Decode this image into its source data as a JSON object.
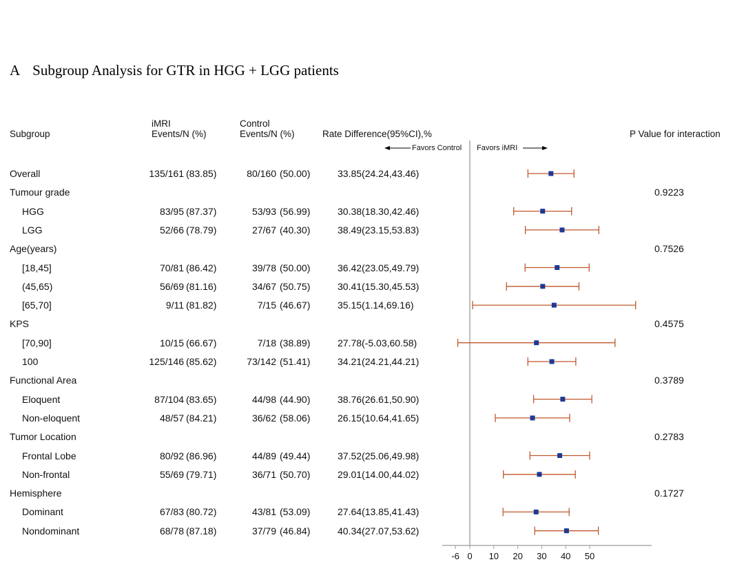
{
  "title": {
    "panel": "A",
    "text": "Subgroup Analysis for GTR in HGG + LGG patients"
  },
  "headers": {
    "subgroup": "Subgroup",
    "imri_line1": "iMRI",
    "imri_line2": "Events/N (%)",
    "control_line1": "Control",
    "control_line2": "Events/N (%)",
    "rate_diff": "Rate Difference(95%CI),%",
    "p_value": "P Value for interaction",
    "favors_control": "Favors Control",
    "favors_imri": "Favors iMRI"
  },
  "colors": {
    "ci_line": "#c0562b",
    "point": "#1f3a93",
    "axis": "#9a9a9a"
  },
  "chart_data": {
    "type": "forest",
    "xlim": [
      -6,
      70
    ],
    "xticks": [
      -6,
      0,
      10,
      20,
      30,
      40,
      50
    ],
    "reference_line": 0,
    "rows": [
      {
        "label": "Overall",
        "level": 0,
        "imri_events": "135/161",
        "imri_pct": "(83.85)",
        "control_events": "80/160",
        "control_pct": "(50.00)",
        "estimate_text": "33.85(24.24,43.46)",
        "est": 33.85,
        "lo": 24.24,
        "hi": 43.46,
        "p": ""
      },
      {
        "label": "Tumour grade",
        "level": 0,
        "p": "0.9223"
      },
      {
        "label": "HGG",
        "level": 1,
        "imri_events": "83/95",
        "imri_pct": "(87.37)",
        "control_events": "53/93",
        "control_pct": "(56.99)",
        "estimate_text": "30.38(18.30,42.46)",
        "est": 30.38,
        "lo": 18.3,
        "hi": 42.46,
        "p": ""
      },
      {
        "label": "LGG",
        "level": 1,
        "imri_events": "52/66",
        "imri_pct": "(78.79)",
        "control_events": "27/67",
        "control_pct": "(40.30)",
        "estimate_text": "38.49(23.15,53.83)",
        "est": 38.49,
        "lo": 23.15,
        "hi": 53.83,
        "p": ""
      },
      {
        "label": "Age(years)",
        "level": 0,
        "p": "0.7526"
      },
      {
        "label": "[18,45]",
        "level": 1,
        "imri_events": "70/81",
        "imri_pct": "(86.42)",
        "control_events": "39/78",
        "control_pct": "(50.00)",
        "estimate_text": "36.42(23.05,49.79)",
        "est": 36.42,
        "lo": 23.05,
        "hi": 49.79,
        "p": ""
      },
      {
        "label": "(45,65)",
        "level": 1,
        "imri_events": "56/69",
        "imri_pct": "(81.16)",
        "control_events": "34/67",
        "control_pct": "(50.75)",
        "estimate_text": "30.41(15.30,45.53)",
        "est": 30.41,
        "lo": 15.3,
        "hi": 45.53,
        "p": ""
      },
      {
        "label": "[65,70]",
        "level": 1,
        "imri_events": "9/11",
        "imri_pct": "(81.82)",
        "control_events": "7/15",
        "control_pct": "(46.67)",
        "estimate_text": "35.15(1.14,69.16)",
        "est": 35.15,
        "lo": 1.14,
        "hi": 69.16,
        "p": ""
      },
      {
        "label": "KPS",
        "level": 0,
        "p": "0.4575"
      },
      {
        "label": "[70,90]",
        "level": 1,
        "imri_events": "10/15",
        "imri_pct": "(66.67)",
        "control_events": "7/18",
        "control_pct": "(38.89)",
        "estimate_text": "27.78(-5.03,60.58)",
        "est": 27.78,
        "lo": -5.03,
        "hi": 60.58,
        "p": ""
      },
      {
        "label": "100",
        "level": 1,
        "imri_events": "125/146",
        "imri_pct": "(85.62)",
        "control_events": "73/142",
        "control_pct": "(51.41)",
        "estimate_text": "34.21(24.21,44.21)",
        "est": 34.21,
        "lo": 24.21,
        "hi": 44.21,
        "p": ""
      },
      {
        "label": "Functional Area",
        "level": 0,
        "p": "0.3789"
      },
      {
        "label": "Eloquent",
        "level": 1,
        "imri_events": "87/104",
        "imri_pct": "(83.65)",
        "control_events": "44/98",
        "control_pct": "(44.90)",
        "estimate_text": "38.76(26.61,50.90)",
        "est": 38.76,
        "lo": 26.61,
        "hi": 50.9,
        "p": ""
      },
      {
        "label": "Non-eloquent",
        "level": 1,
        "imri_events": "48/57",
        "imri_pct": "(84.21)",
        "control_events": "36/62",
        "control_pct": "(58.06)",
        "estimate_text": "26.15(10.64,41.65)",
        "est": 26.15,
        "lo": 10.64,
        "hi": 41.65,
        "p": ""
      },
      {
        "label": "Tumor Location",
        "level": 0,
        "p": "0.2783"
      },
      {
        "label": "Frontal Lobe",
        "level": 1,
        "imri_events": "80/92",
        "imri_pct": "(86.96)",
        "control_events": "44/89",
        "control_pct": "(49.44)",
        "estimate_text": "37.52(25.06,49.98)",
        "est": 37.52,
        "lo": 25.06,
        "hi": 49.98,
        "p": ""
      },
      {
        "label": "Non-frontal",
        "level": 1,
        "imri_events": "55/69",
        "imri_pct": "(79.71)",
        "control_events": "36/71",
        "control_pct": "(50.70)",
        "estimate_text": "29.01(14.00,44.02)",
        "est": 29.01,
        "lo": 14.0,
        "hi": 44.02,
        "p": ""
      },
      {
        "label": "Hemisphere",
        "level": 0,
        "p": "0.1727"
      },
      {
        "label": "Dominant",
        "level": 1,
        "imri_events": "67/83",
        "imri_pct": "(80.72)",
        "control_events": "43/81",
        "control_pct": "(53.09)",
        "estimate_text": "27.64(13.85,41.43)",
        "est": 27.64,
        "lo": 13.85,
        "hi": 41.43,
        "p": ""
      },
      {
        "label": "Nondominant",
        "level": 1,
        "imri_events": "68/78",
        "imri_pct": "(87.18)",
        "control_events": "37/79",
        "control_pct": "(46.84)",
        "estimate_text": "40.34(27.07,53.62)",
        "est": 40.34,
        "lo": 27.07,
        "hi": 53.62,
        "p": ""
      }
    ]
  }
}
